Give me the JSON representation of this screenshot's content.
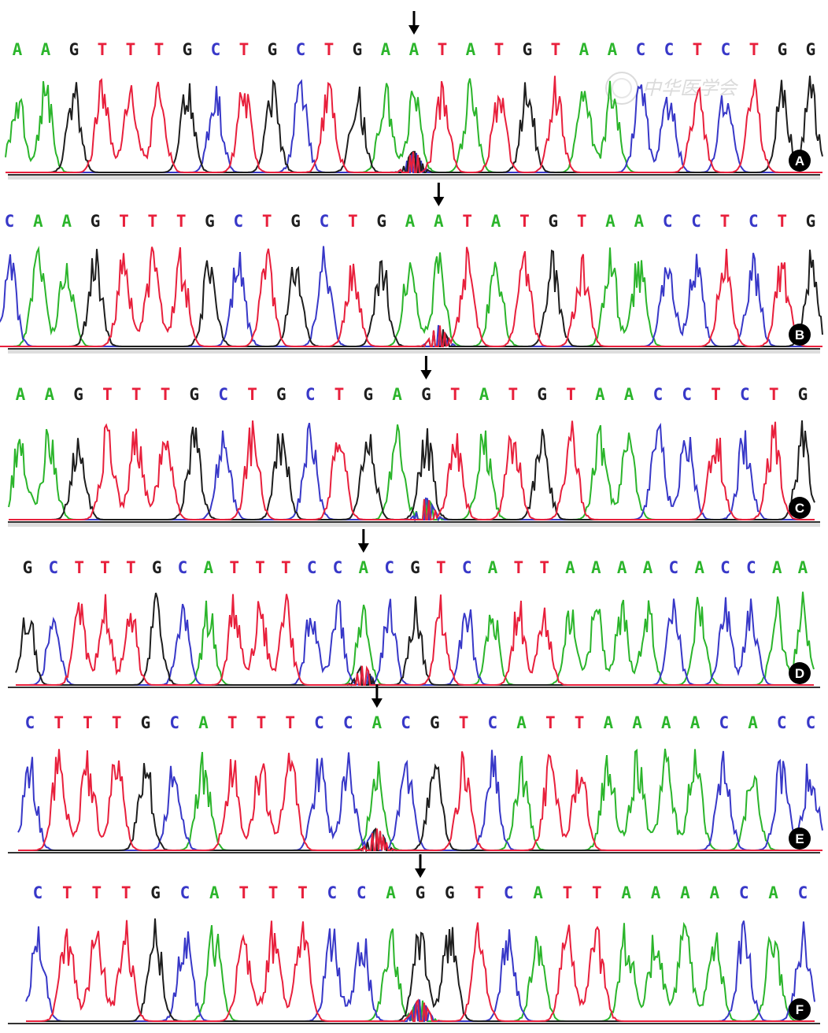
{
  "base_colors": {
    "A": "#2bb52b",
    "C": "#3838c8",
    "G": "#1e1e1e",
    "T": "#e8203c"
  },
  "watermark": "中华医学会",
  "panels": [
    {
      "label": "A",
      "sequence": "AAGTTTGCTGCTGAATATGTAACCTCTGG",
      "marked_index": 14
    },
    {
      "label": "B",
      "sequence": "CAAGTTTGCTGCTGAATATGTAACCTCTG",
      "marked_index": 15
    },
    {
      "label": "C",
      "sequence": "AAGTTTGCTGCTGAGTATGTAACCTCTG",
      "marked_index": 14
    },
    {
      "label": "D",
      "sequence": "GCTTTGCATTTCCACGTCATTAAAACACCAA",
      "marked_index": 13
    },
    {
      "label": "E",
      "sequence": "CTTTGCATTTCCACGTCATTAAAACACC",
      "marked_index": 12
    },
    {
      "label": "F",
      "sequence": "CTTTGCATTTCCAGGTCATTAAAACAC",
      "marked_index": 13
    }
  ]
}
